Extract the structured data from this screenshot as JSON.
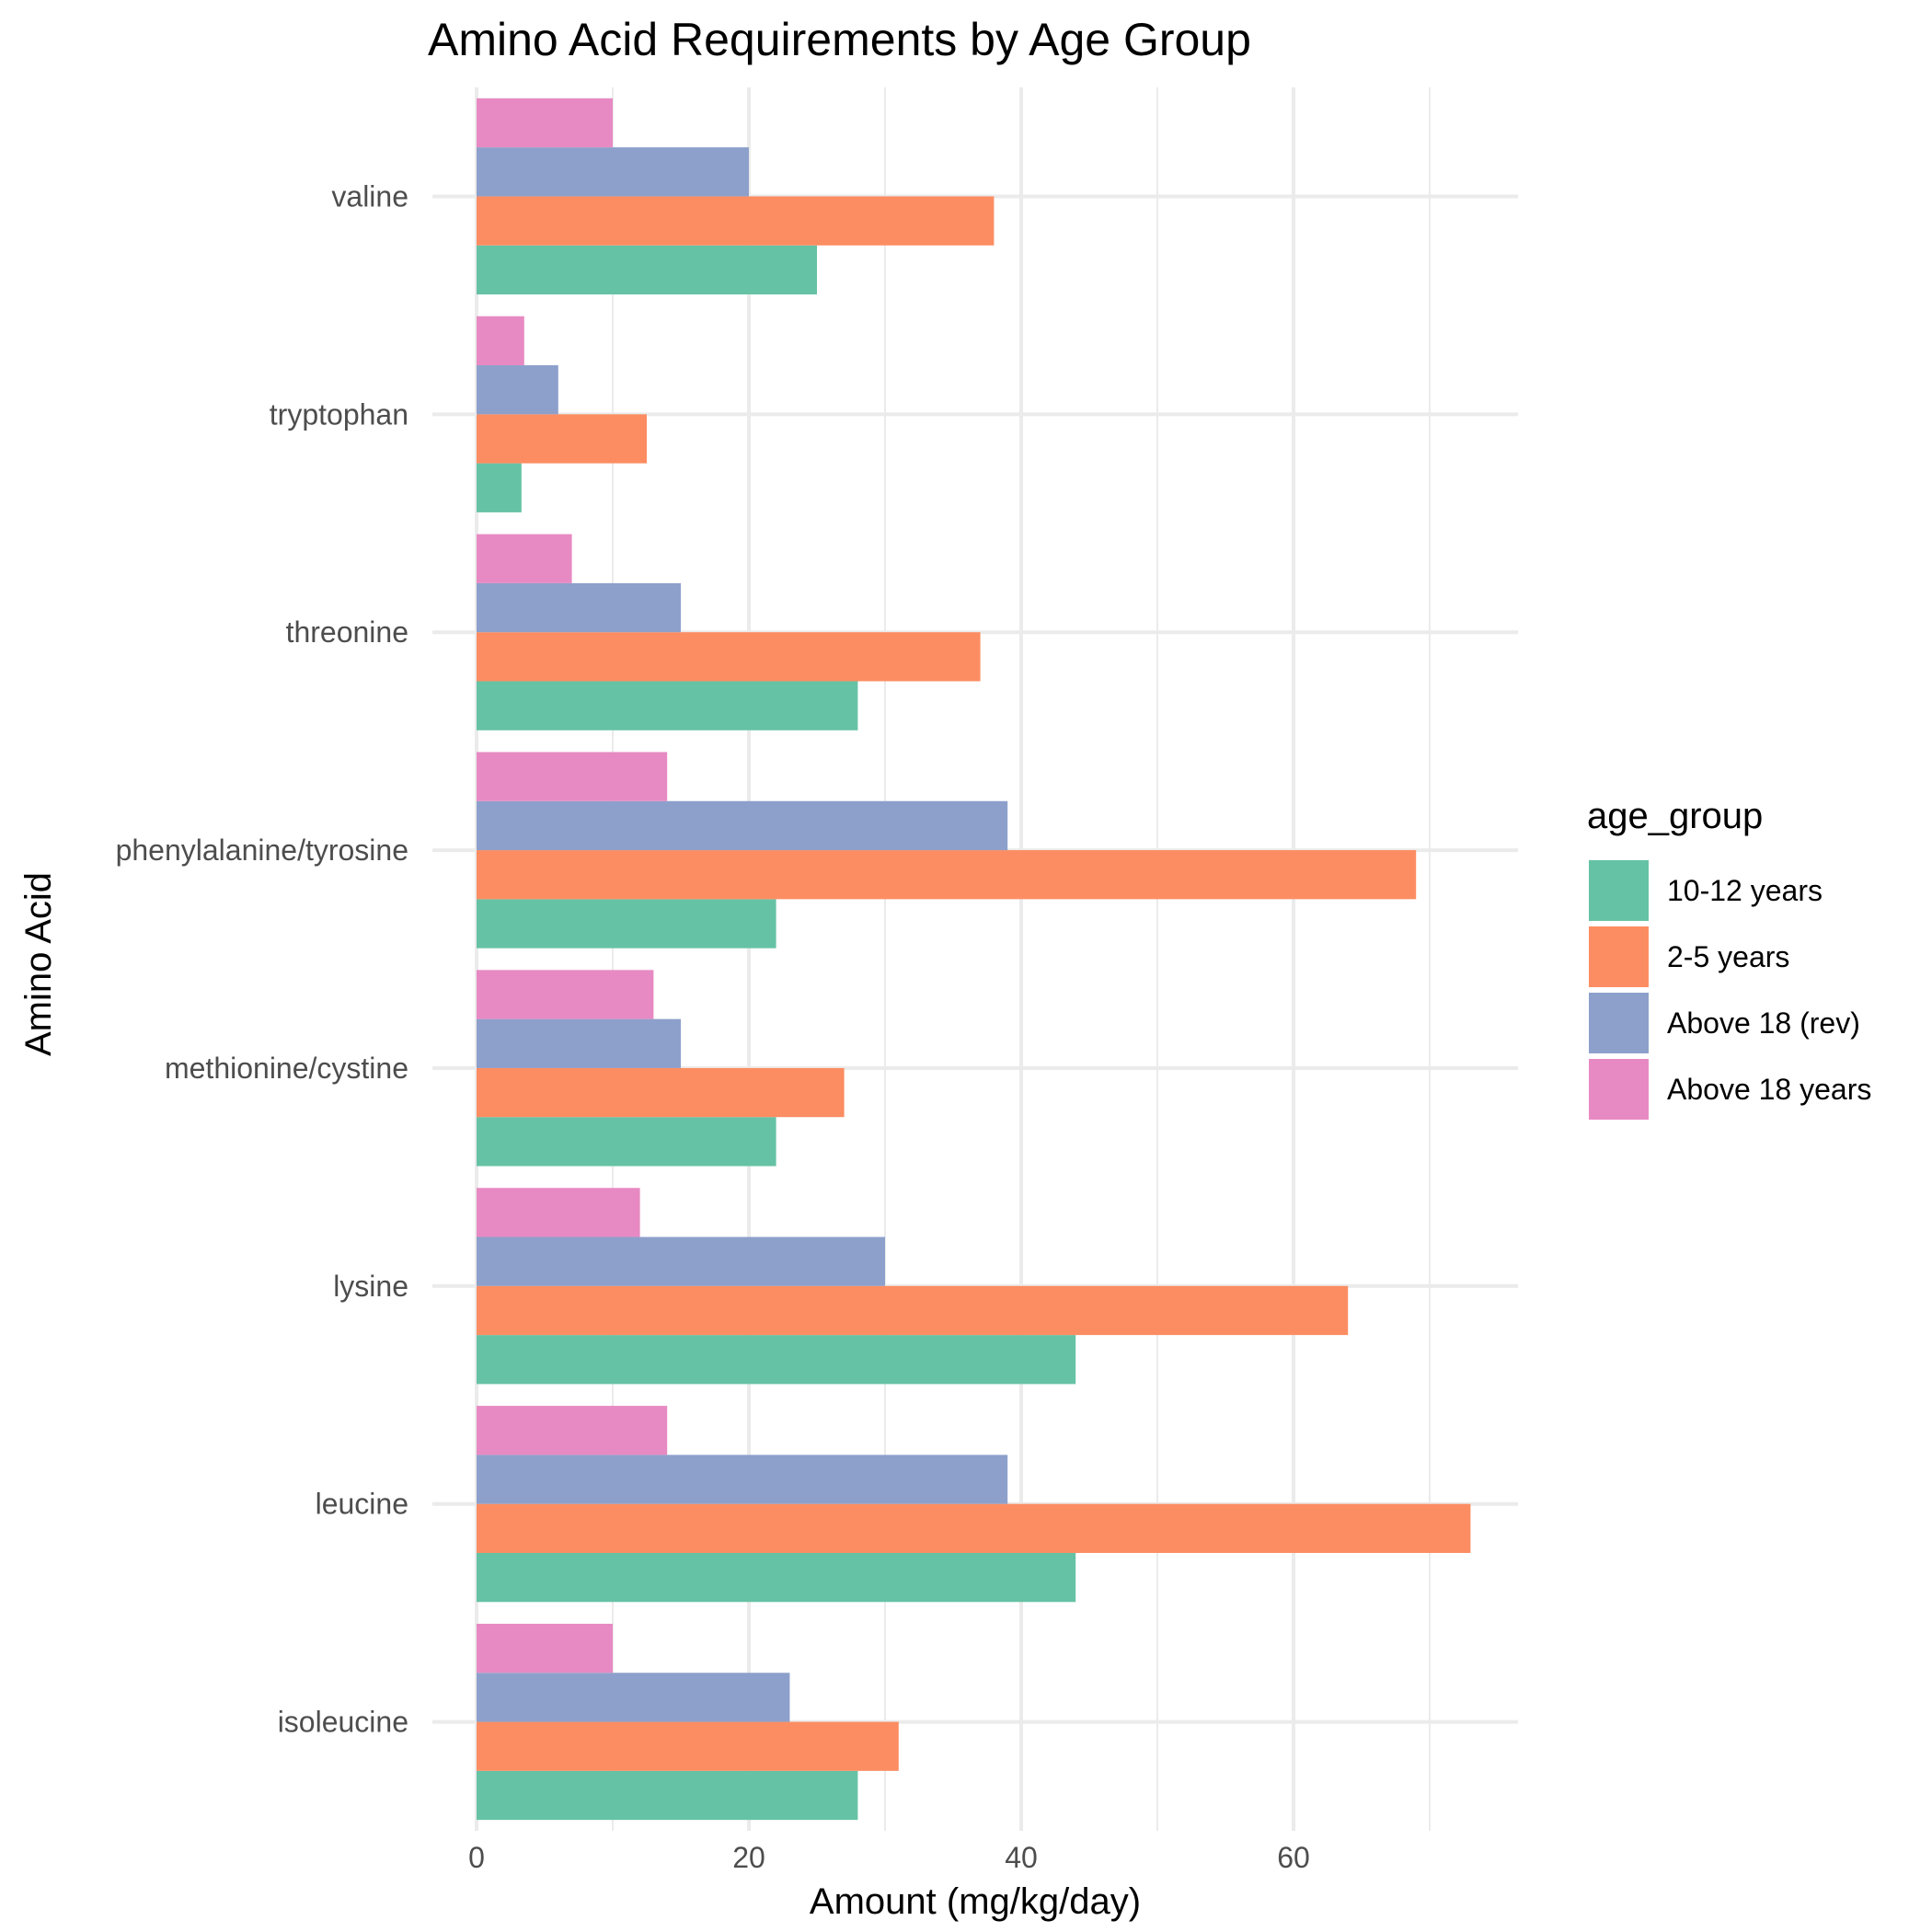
{
  "chart_data": {
    "type": "bar",
    "orientation": "horizontal",
    "title": "Amino Acid Requirements by Age Group",
    "xlabel": "Amount (mg/kg/day)",
    "ylabel": "Amino Acid",
    "xlim": [
      0,
      76.7
    ],
    "x_ticks": [
      0,
      20,
      40,
      60
    ],
    "x_tick_labels": [
      "0",
      "20",
      "40",
      "60"
    ],
    "grid": true,
    "legend_title": "age_group",
    "legend_position": "right",
    "categories": [
      "isoleucine",
      "leucine",
      "lysine",
      "methionine/cystine",
      "phenylalanine/tyrosine",
      "threonine",
      "tryptophan",
      "valine"
    ],
    "series": [
      {
        "name": "10-12 years",
        "color": "#66c2a5",
        "values": [
          28,
          44,
          44,
          22,
          22,
          28,
          3.3,
          25
        ]
      },
      {
        "name": "2-5 years",
        "color": "#fc8d62",
        "values": [
          31,
          73,
          64,
          27,
          69,
          37,
          12.5,
          38
        ]
      },
      {
        "name": "Above 18 (rev)",
        "color": "#8da0cb",
        "values": [
          23,
          39,
          30,
          15,
          39,
          15,
          6,
          20
        ]
      },
      {
        "name": "Above 18 years",
        "color": "#e78ac3",
        "values": [
          10,
          14,
          12,
          13,
          14,
          7,
          3.5,
          10
        ]
      }
    ]
  }
}
